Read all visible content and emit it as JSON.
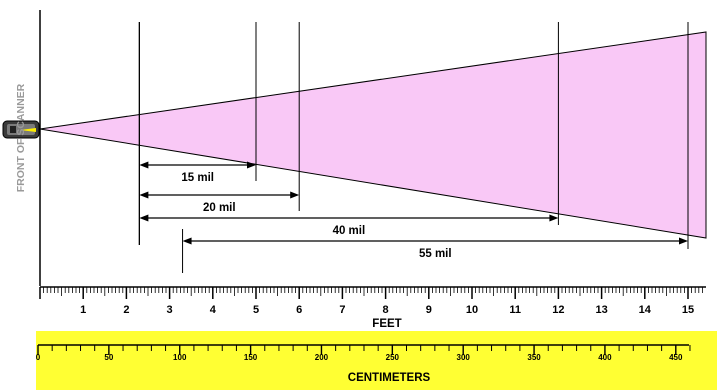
{
  "side_label": "FRONT OF SCANNER",
  "colors": {
    "scan_field": "#f9c8f6",
    "cm_band": "#ffff33",
    "lines": "#000000",
    "side_label": "#9a9a9a"
  },
  "ranges": [
    {
      "label": "15 mil",
      "start_ft": 2.3,
      "end_ft": 5.0
    },
    {
      "label": "20 mil",
      "start_ft": 2.3,
      "end_ft": 6.0
    },
    {
      "label": "40 mil",
      "start_ft": 2.3,
      "end_ft": 12.0
    },
    {
      "label": "55 mil",
      "start_ft": 3.3,
      "end_ft": 15.0
    }
  ],
  "feet_scale": {
    "label": "FEET",
    "ticks": [
      "1",
      "2",
      "3",
      "4",
      "5",
      "6",
      "7",
      "8",
      "9",
      "10",
      "11",
      "12",
      "13",
      "14",
      "15"
    ]
  },
  "cm_scale": {
    "label": "CENTIMETERS",
    "ticks": [
      "0",
      "50",
      "100",
      "150",
      "200",
      "250",
      "300",
      "350",
      "400",
      "450"
    ]
  }
}
